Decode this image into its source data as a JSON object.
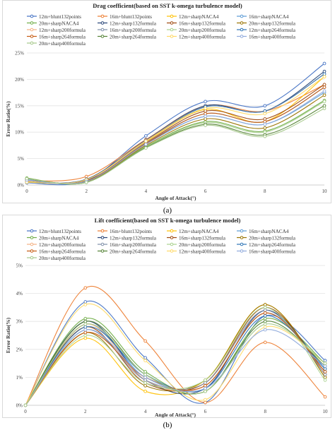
{
  "captions": {
    "a": "(a)",
    "b": "(b)"
  },
  "chart_data": [
    {
      "type": "line",
      "title": "Drag coefficient(based on SST k-omega turbulence model)",
      "xlabel": "Angle of Attack(°)",
      "ylabel": "Error Ratio(%)",
      "x": [
        0,
        2,
        4,
        6,
        8,
        10
      ],
      "xticks": [
        "0",
        "2",
        "4",
        "6",
        "8",
        "10"
      ],
      "ylim": [
        0,
        25
      ],
      "yticks": [
        "0%",
        "5%",
        "10%",
        "15%",
        "20%",
        "25%"
      ],
      "grid": true,
      "legend_position": "top",
      "series": [
        {
          "name": "12m+blunt132points",
          "color": "#4472c4",
          "values": [
            0.4,
            0.8,
            9.3,
            15.8,
            15.0,
            23.0
          ]
        },
        {
          "name": "16m+blunt132points",
          "color": "#ed7d31",
          "values": [
            0.8,
            1.6,
            8.6,
            15.0,
            14.0,
            19.0
          ]
        },
        {
          "name": "12m+sharpNACA4",
          "color": "#ffc000",
          "values": [
            0.6,
            1.0,
            8.2,
            14.3,
            12.0,
            20.5
          ]
        },
        {
          "name": "16m+sharpNACA4",
          "color": "#5b9bd5",
          "values": [
            1.0,
            0.6,
            7.8,
            13.0,
            11.5,
            17.5
          ]
        },
        {
          "name": "20m+sharpNACA4",
          "color": "#70ad47",
          "values": [
            1.3,
            0.5,
            7.3,
            12.0,
            10.2,
            16.0
          ]
        },
        {
          "name": "12m+sharp132formula",
          "color": "#264478",
          "values": [
            0.5,
            1.1,
            8.5,
            15.0,
            14.0,
            21.5
          ]
        },
        {
          "name": "16m+sharp132formula",
          "color": "#9e480e",
          "values": [
            0.9,
            0.8,
            8.0,
            14.0,
            12.5,
            19.0
          ]
        },
        {
          "name": "20m+sharp132formula",
          "color": "#997300",
          "values": [
            1.2,
            0.6,
            7.5,
            12.5,
            10.8,
            17.0
          ]
        },
        {
          "name": "12m+sharp200formula",
          "color": "#f4b183",
          "values": [
            0.5,
            1.0,
            8.4,
            14.8,
            14.0,
            21.0
          ]
        },
        {
          "name": "16m+sharp200formula",
          "color": "#7f8fa9",
          "values": [
            0.9,
            0.7,
            7.9,
            13.5,
            12.0,
            18.5
          ]
        },
        {
          "name": "20m+sharp200formula",
          "color": "#a9d18e",
          "values": [
            1.2,
            0.5,
            7.2,
            11.8,
            10.0,
            15.8
          ]
        },
        {
          "name": "12m+sharp264formula",
          "color": "#2e75b6",
          "values": [
            0.5,
            1.0,
            8.3,
            14.8,
            14.0,
            21.0
          ]
        },
        {
          "name": "16m+sharp264formula",
          "color": "#c55a11",
          "values": [
            0.9,
            0.7,
            7.8,
            13.5,
            12.0,
            18.5
          ]
        },
        {
          "name": "20m+sharp264formula",
          "color": "#548235",
          "values": [
            1.2,
            0.5,
            7.1,
            11.5,
            9.5,
            15.0
          ]
        },
        {
          "name": "12m+sharp400formula",
          "color": "#ffd966",
          "values": [
            0.5,
            1.0,
            8.3,
            14.5,
            13.5,
            20.5
          ]
        },
        {
          "name": "16m+sharp400formula",
          "color": "#8faadc",
          "values": [
            0.9,
            0.7,
            7.7,
            13.0,
            11.5,
            17.8
          ]
        },
        {
          "name": "20m+sharp400formula",
          "color": "#a5c88a",
          "values": [
            1.2,
            0.5,
            7.0,
            11.3,
            9.2,
            14.5
          ]
        }
      ]
    },
    {
      "type": "line",
      "title": "Lift coefficient(based on SST k-omega turbulence model)",
      "xlabel": "Angle of Attack(°)",
      "ylabel": "Error Ratio(%)",
      "x": [
        0,
        2,
        4,
        6,
        8,
        10
      ],
      "xticks": [
        "0",
        "2",
        "4",
        "6",
        "8",
        "10"
      ],
      "ylim": [
        0,
        5
      ],
      "yticks": [
        "0%",
        "1%",
        "2%",
        "3%",
        "4%",
        "5%"
      ],
      "grid": true,
      "legend_position": "top",
      "series": [
        {
          "name": "12m+blunt132points",
          "color": "#4472c4",
          "values": [
            0,
            3.7,
            1.7,
            0.1,
            3.2,
            1.6
          ]
        },
        {
          "name": "16m+blunt132points",
          "color": "#ed7d31",
          "values": [
            0,
            4.2,
            2.3,
            0.1,
            2.25,
            0.3
          ]
        },
        {
          "name": "12m+sharpNACA4",
          "color": "#ffc000",
          "values": [
            0,
            2.4,
            0.5,
            0.9,
            3.6,
            1.0
          ]
        },
        {
          "name": "16m+sharpNACA4",
          "color": "#5b9bd5",
          "values": [
            0,
            2.9,
            1.0,
            0.7,
            3.3,
            1.3
          ]
        },
        {
          "name": "20m+sharpNACA4",
          "color": "#70ad47",
          "values": [
            0,
            3.1,
            1.2,
            0.5,
            3.1,
            1.5
          ]
        },
        {
          "name": "12m+sharp132formula",
          "color": "#264478",
          "values": [
            0,
            3.0,
            0.9,
            0.6,
            3.4,
            1.2
          ]
        },
        {
          "name": "16m+sharp132formula",
          "color": "#9e480e",
          "values": [
            0,
            2.8,
            0.8,
            0.8,
            3.5,
            1.1
          ]
        },
        {
          "name": "20m+sharp132formula",
          "color": "#997300",
          "values": [
            0,
            2.6,
            0.7,
            0.9,
            3.6,
            1.0
          ]
        },
        {
          "name": "12m+sharp200formula",
          "color": "#f4b183",
          "values": [
            0,
            2.9,
            0.9,
            0.7,
            3.3,
            1.2
          ]
        },
        {
          "name": "16m+sharp200formula",
          "color": "#7f8fa9",
          "values": [
            0,
            2.7,
            0.9,
            0.8,
            3.4,
            1.1
          ]
        },
        {
          "name": "20m+sharp200formula",
          "color": "#a9d18e",
          "values": [
            0,
            2.5,
            0.8,
            0.9,
            3.5,
            0.9
          ]
        },
        {
          "name": "12m+sharp264formula",
          "color": "#2e75b6",
          "values": [
            0,
            2.8,
            1.1,
            0.6,
            3.2,
            1.3
          ]
        },
        {
          "name": "16m+sharp264formula",
          "color": "#c55a11",
          "values": [
            0,
            2.6,
            1.0,
            0.7,
            3.3,
            1.2
          ]
        },
        {
          "name": "20m+sharp264formula",
          "color": "#548235",
          "values": [
            0,
            3.0,
            1.1,
            0.5,
            3.0,
            1.4
          ]
        },
        {
          "name": "12m+sharp400formula",
          "color": "#ffd966",
          "values": [
            0,
            3.6,
            1.6,
            0.2,
            2.8,
            1.5
          ]
        },
        {
          "name": "16m+sharp400formula",
          "color": "#8faadc",
          "values": [
            0,
            2.7,
            1.0,
            0.6,
            2.7,
            1.4
          ]
        },
        {
          "name": "20m+sharp400formula",
          "color": "#a5c88a",
          "values": [
            0,
            2.9,
            1.1,
            0.5,
            2.9,
            1.5
          ]
        }
      ]
    }
  ]
}
